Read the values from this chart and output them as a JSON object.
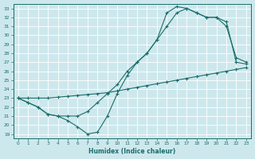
{
  "bg_color": "#cde8ed",
  "grid_color": "#b0d8e0",
  "line_color": "#1a6e6a",
  "xlabel": "Humidex (Indice chaleur)",
  "xlim": [
    -0.5,
    23.5
  ],
  "ylim": [
    18.5,
    33.5
  ],
  "xticks": [
    0,
    1,
    2,
    3,
    4,
    5,
    6,
    7,
    8,
    9,
    10,
    11,
    12,
    13,
    14,
    15,
    16,
    17,
    18,
    19,
    20,
    21,
    22,
    23
  ],
  "yticks": [
    19,
    20,
    21,
    22,
    23,
    24,
    25,
    26,
    27,
    28,
    29,
    30,
    31,
    32,
    33
  ],
  "line1_x": [
    0,
    1,
    2,
    3,
    4,
    5,
    6,
    7,
    8,
    9,
    10,
    11,
    12,
    13,
    14,
    15,
    16,
    17,
    18,
    19,
    20,
    21,
    22,
    23
  ],
  "line1_y": [
    23.0,
    23.0,
    23.0,
    23.0,
    23.1,
    23.2,
    23.3,
    23.4,
    23.5,
    23.6,
    23.8,
    24.0,
    24.2,
    24.4,
    24.6,
    24.8,
    25.0,
    25.2,
    25.4,
    25.6,
    25.8,
    26.0,
    26.2,
    26.4
  ],
  "line2_x": [
    0,
    1,
    2,
    3,
    4,
    5,
    6,
    7,
    8,
    9,
    10,
    11,
    12,
    13,
    14,
    15,
    16,
    17,
    18,
    19,
    20,
    21,
    22,
    23
  ],
  "line2_y": [
    23.0,
    22.5,
    22.0,
    21.2,
    21.0,
    21.0,
    21.0,
    21.5,
    22.5,
    23.5,
    24.5,
    26.0,
    27.0,
    28.0,
    29.5,
    31.0,
    32.5,
    33.0,
    32.5,
    32.0,
    32.0,
    31.5,
    27.0,
    26.8
  ],
  "line3_x": [
    0,
    1,
    2,
    3,
    4,
    5,
    6,
    7,
    8,
    9,
    10,
    11,
    12,
    13,
    14,
    15,
    16,
    17,
    18,
    19,
    20,
    21,
    22,
    23
  ],
  "line3_y": [
    23.0,
    22.5,
    22.0,
    21.2,
    21.0,
    20.5,
    19.8,
    19.0,
    19.2,
    21.0,
    23.5,
    25.5,
    27.0,
    28.0,
    29.5,
    32.5,
    33.2,
    33.0,
    32.5,
    32.0,
    32.0,
    31.0,
    27.5,
    27.0
  ]
}
